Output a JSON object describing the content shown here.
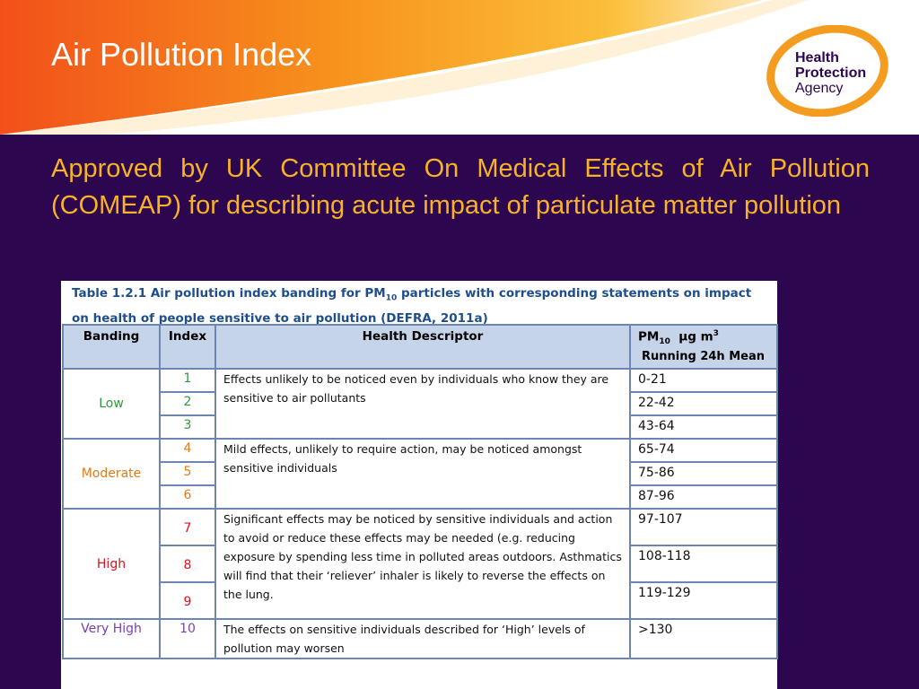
{
  "slide": {
    "title": "Air Pollution Index",
    "subtitle": "Approved by UK Committee On Medical Effects of Air Pollution (COMEAP) for describing acute impact of particulate matter pollution"
  },
  "logo": {
    "line1": "Health",
    "line2": "Protection",
    "line3": "Agency"
  },
  "caption": {
    "part1": "Table 1.2.1 Air pollution index banding for PM",
    "sub": "10",
    "part2": " particles with corresponding statements on impact on health of people sensitive to air pollution (DEFRA, 2011a)"
  },
  "table": {
    "headers": {
      "banding": "Banding",
      "index": "Index",
      "descriptor": "Health Descriptor",
      "pm_prefix": "PM",
      "pm_sub": "10",
      "pm_unit": "  µg m",
      "pm_sup": "3",
      "pm_line2": "Running 24h Mean"
    },
    "bands": [
      {
        "name": "Low",
        "descriptor": "Effects unlikely to be noticed even by individuals who know they are sensitive to air pollutants",
        "rows": [
          {
            "index": "1",
            "pm": "0-21"
          },
          {
            "index": "2",
            "pm": "22-42"
          },
          {
            "index": "3",
            "pm": "43-64"
          }
        ]
      },
      {
        "name": "Moderate",
        "descriptor": "Mild effects, unlikely to require action, may be noticed amongst sensitive individuals",
        "rows": [
          {
            "index": "4",
            "pm": "65-74"
          },
          {
            "index": "5",
            "pm": "75-86"
          },
          {
            "index": "6",
            "pm": "87-96"
          }
        ]
      },
      {
        "name": "High",
        "descriptor": "Significant effects may be noticed by sensitive individuals and action to avoid or reduce these effects may be needed (e.g. reducing exposure by spending less time in polluted areas outdoors. Asthmatics will find that their ‘reliever’ inhaler is likely to reverse the effects on the lung.",
        "rows": [
          {
            "index": "7",
            "pm": "97-107"
          },
          {
            "index": "8",
            "pm": "108-118"
          },
          {
            "index": "9",
            "pm": "119-129"
          }
        ]
      },
      {
        "name": "Very High",
        "descriptor": "The effects on sensitive individuals described for ‘High’ levels of pollution may worsen",
        "rows": [
          {
            "index": "10",
            "pm": ">130"
          }
        ]
      }
    ]
  },
  "colors": {
    "low": "#2e9a3e",
    "moderate": "#e07b18",
    "high": "#e0101e",
    "very_high": "#7a3fb0",
    "background": "#2d0650",
    "subtitle": "#f7b225"
  }
}
